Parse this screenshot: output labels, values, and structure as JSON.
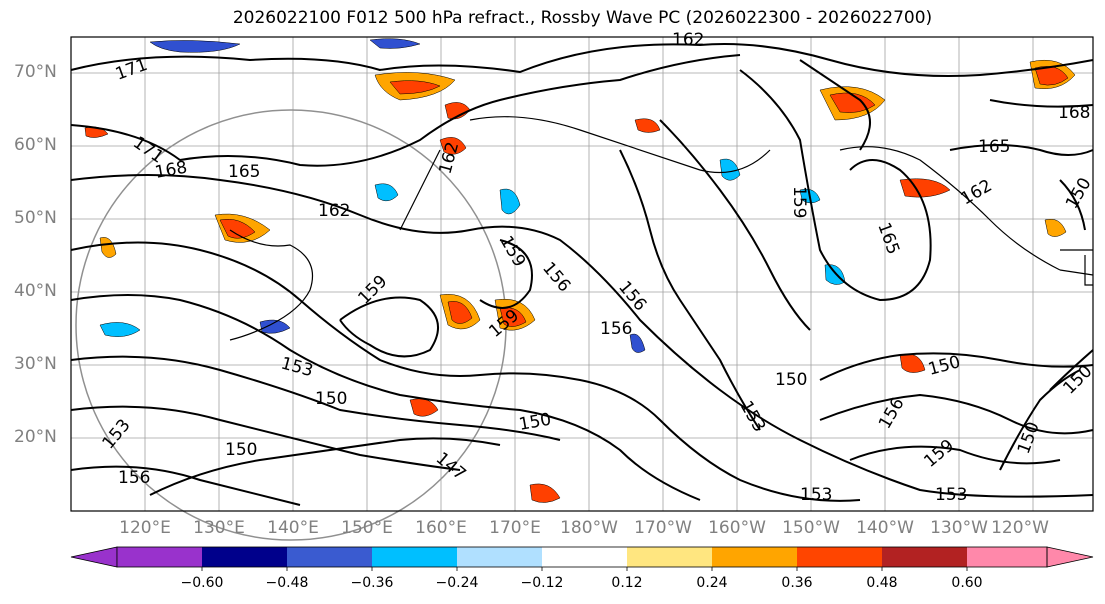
{
  "title": "2026022100 F012 500 hPa refract., Rossby Wave PC (2026022300 - 2026022700)",
  "map": {
    "lat_labels": [
      "70°N",
      "60°N",
      "50°N",
      "40°N",
      "30°N",
      "20°N"
    ],
    "lon_labels": [
      "120°E",
      "130°E",
      "140°E",
      "150°E",
      "160°E",
      "170°E",
      "180°W",
      "170°W",
      "160°W",
      "150°W",
      "140°W",
      "130°W",
      "120°W"
    ],
    "contour_labels": [
      "171",
      "171",
      "168",
      "165",
      "162",
      "162",
      "159",
      "159",
      "159",
      "156",
      "156",
      "156",
      "153",
      "153",
      "153",
      "150",
      "150",
      "150",
      "150",
      "150",
      "147",
      "156",
      "168",
      "165",
      "165",
      "162",
      "162",
      "159",
      "159",
      "153",
      "150",
      "150",
      "150",
      "156",
      "153"
    ],
    "colors": {
      "contour": "#000000",
      "grid": "#a0a0a0",
      "coast": "#000000",
      "neg_strong": "#3050d0",
      "neg_mid": "#00bfff",
      "neg_weak": "#b0e0ff",
      "pos_weak": "#ffe680",
      "pos_mid": "#ffa500",
      "pos_strong": "#ff4000",
      "pos_vstrong": "#b22222"
    }
  },
  "colorbar": {
    "ticks": [
      "−0.60",
      "−0.48",
      "−0.36",
      "−0.24",
      "−0.12",
      "0.12",
      "0.24",
      "0.36",
      "0.48",
      "0.60"
    ],
    "colors": [
      "#9932cc",
      "#00008b",
      "#3a5bd0",
      "#00bfff",
      "#b0e0ff",
      "#ffffff",
      "#ffe680",
      "#ffa500",
      "#ff4500",
      "#b22222",
      "#ff88aa"
    ]
  }
}
